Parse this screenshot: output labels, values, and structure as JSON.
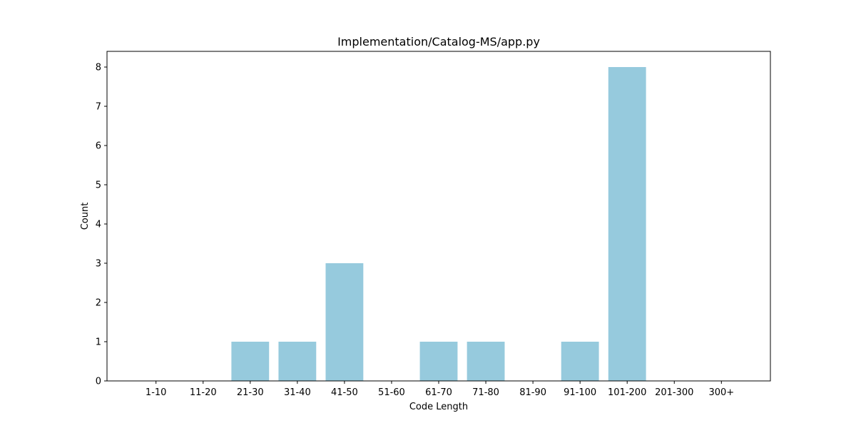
{
  "chart_data": {
    "type": "bar",
    "title": "Implementation/Catalog-MS/app.py",
    "xlabel": "Code Length",
    "ylabel": "Count",
    "categories": [
      "1-10",
      "11-20",
      "21-30",
      "31-40",
      "41-50",
      "51-60",
      "61-70",
      "71-80",
      "81-90",
      "91-100",
      "101-200",
      "201-300",
      "300+"
    ],
    "values": [
      0,
      0,
      1,
      1,
      3,
      0,
      1,
      1,
      0,
      1,
      8,
      0,
      0
    ],
    "ylim": [
      0,
      8.4
    ],
    "yticks": [
      0,
      1,
      2,
      3,
      4,
      5,
      6,
      7,
      8
    ],
    "bar_color": "#96cadd",
    "grid": false,
    "legend": "none"
  }
}
